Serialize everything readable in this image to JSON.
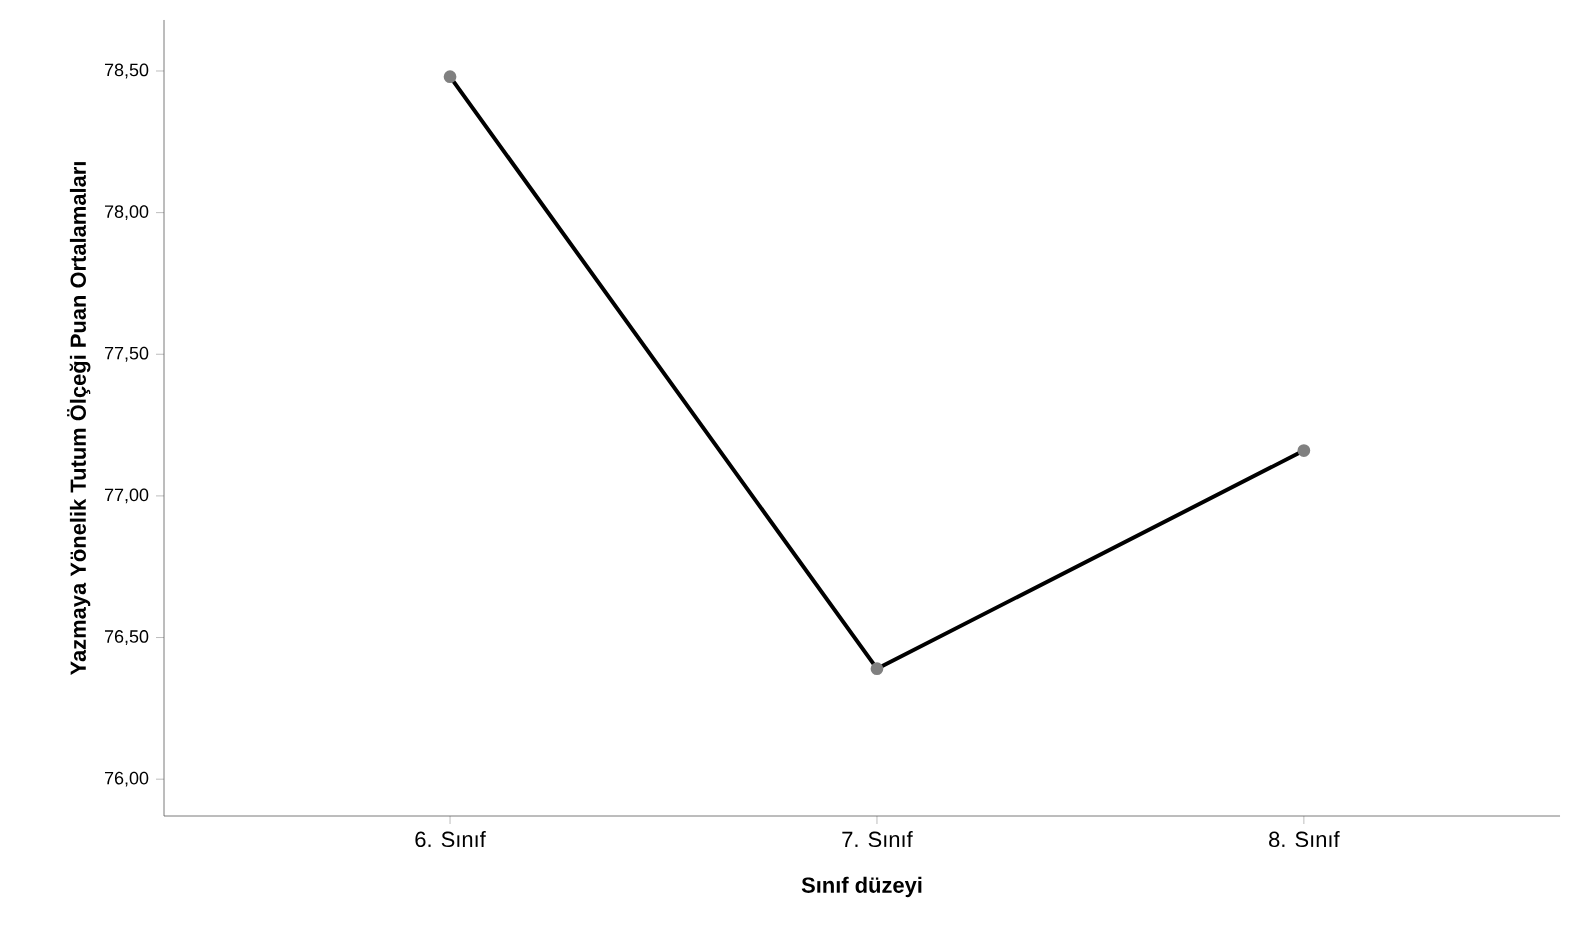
{
  "chart_data": {
    "type": "line",
    "xlabel": "Sınıf düzeyi",
    "ylabel": "Yazmaya Yönelik Tutum Ölçeği Puan Ortalamaları",
    "categories": [
      "6. Sınıf",
      "7. Sınıf",
      "8. Sınıf"
    ],
    "series": [
      {
        "color": "#000000",
        "values": [
          78.48,
          76.39,
          77.16
        ]
      }
    ],
    "ylim": [
      75.87,
      78.68
    ],
    "yticks": [
      {
        "value": 76.0,
        "label": "76,00"
      },
      {
        "value": 76.5,
        "label": "76,50"
      },
      {
        "value": 77.0,
        "label": "77,00"
      },
      {
        "value": 77.5,
        "label": "77,50"
      },
      {
        "value": 78.0,
        "label": "78,00"
      },
      {
        "value": 78.5,
        "label": "78,50"
      }
    ],
    "marker": "circle",
    "grid": false
  }
}
